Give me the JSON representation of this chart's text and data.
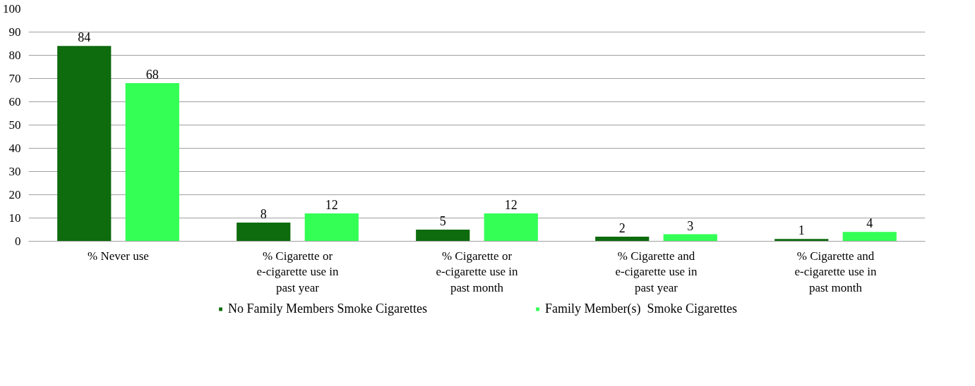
{
  "chart_data": {
    "type": "bar",
    "categories": [
      "% Never use",
      "% Cigarette or e-cigarette use in past year",
      "% Cigarette or e-cigarette use in past month",
      "% Cigarette and e-cigarette use in past year",
      "% Cigarette and e-cigarette use in past month"
    ],
    "series": [
      {
        "name": "No Family Members Smoke Cigarettes",
        "color": "#0e6b0e",
        "values": [
          84,
          8,
          5,
          2,
          1
        ]
      },
      {
        "name": "Family Member(s)  Smoke Cigarettes",
        "color": "#33ff55",
        "values": [
          68,
          12,
          12,
          3,
          4
        ]
      }
    ],
    "ylim": [
      0,
      100
    ],
    "yticks": [
      0,
      10,
      20,
      30,
      40,
      50,
      60,
      70,
      80,
      90,
      100
    ],
    "grid": "y",
    "legend": "bottom",
    "data_labels": true
  }
}
